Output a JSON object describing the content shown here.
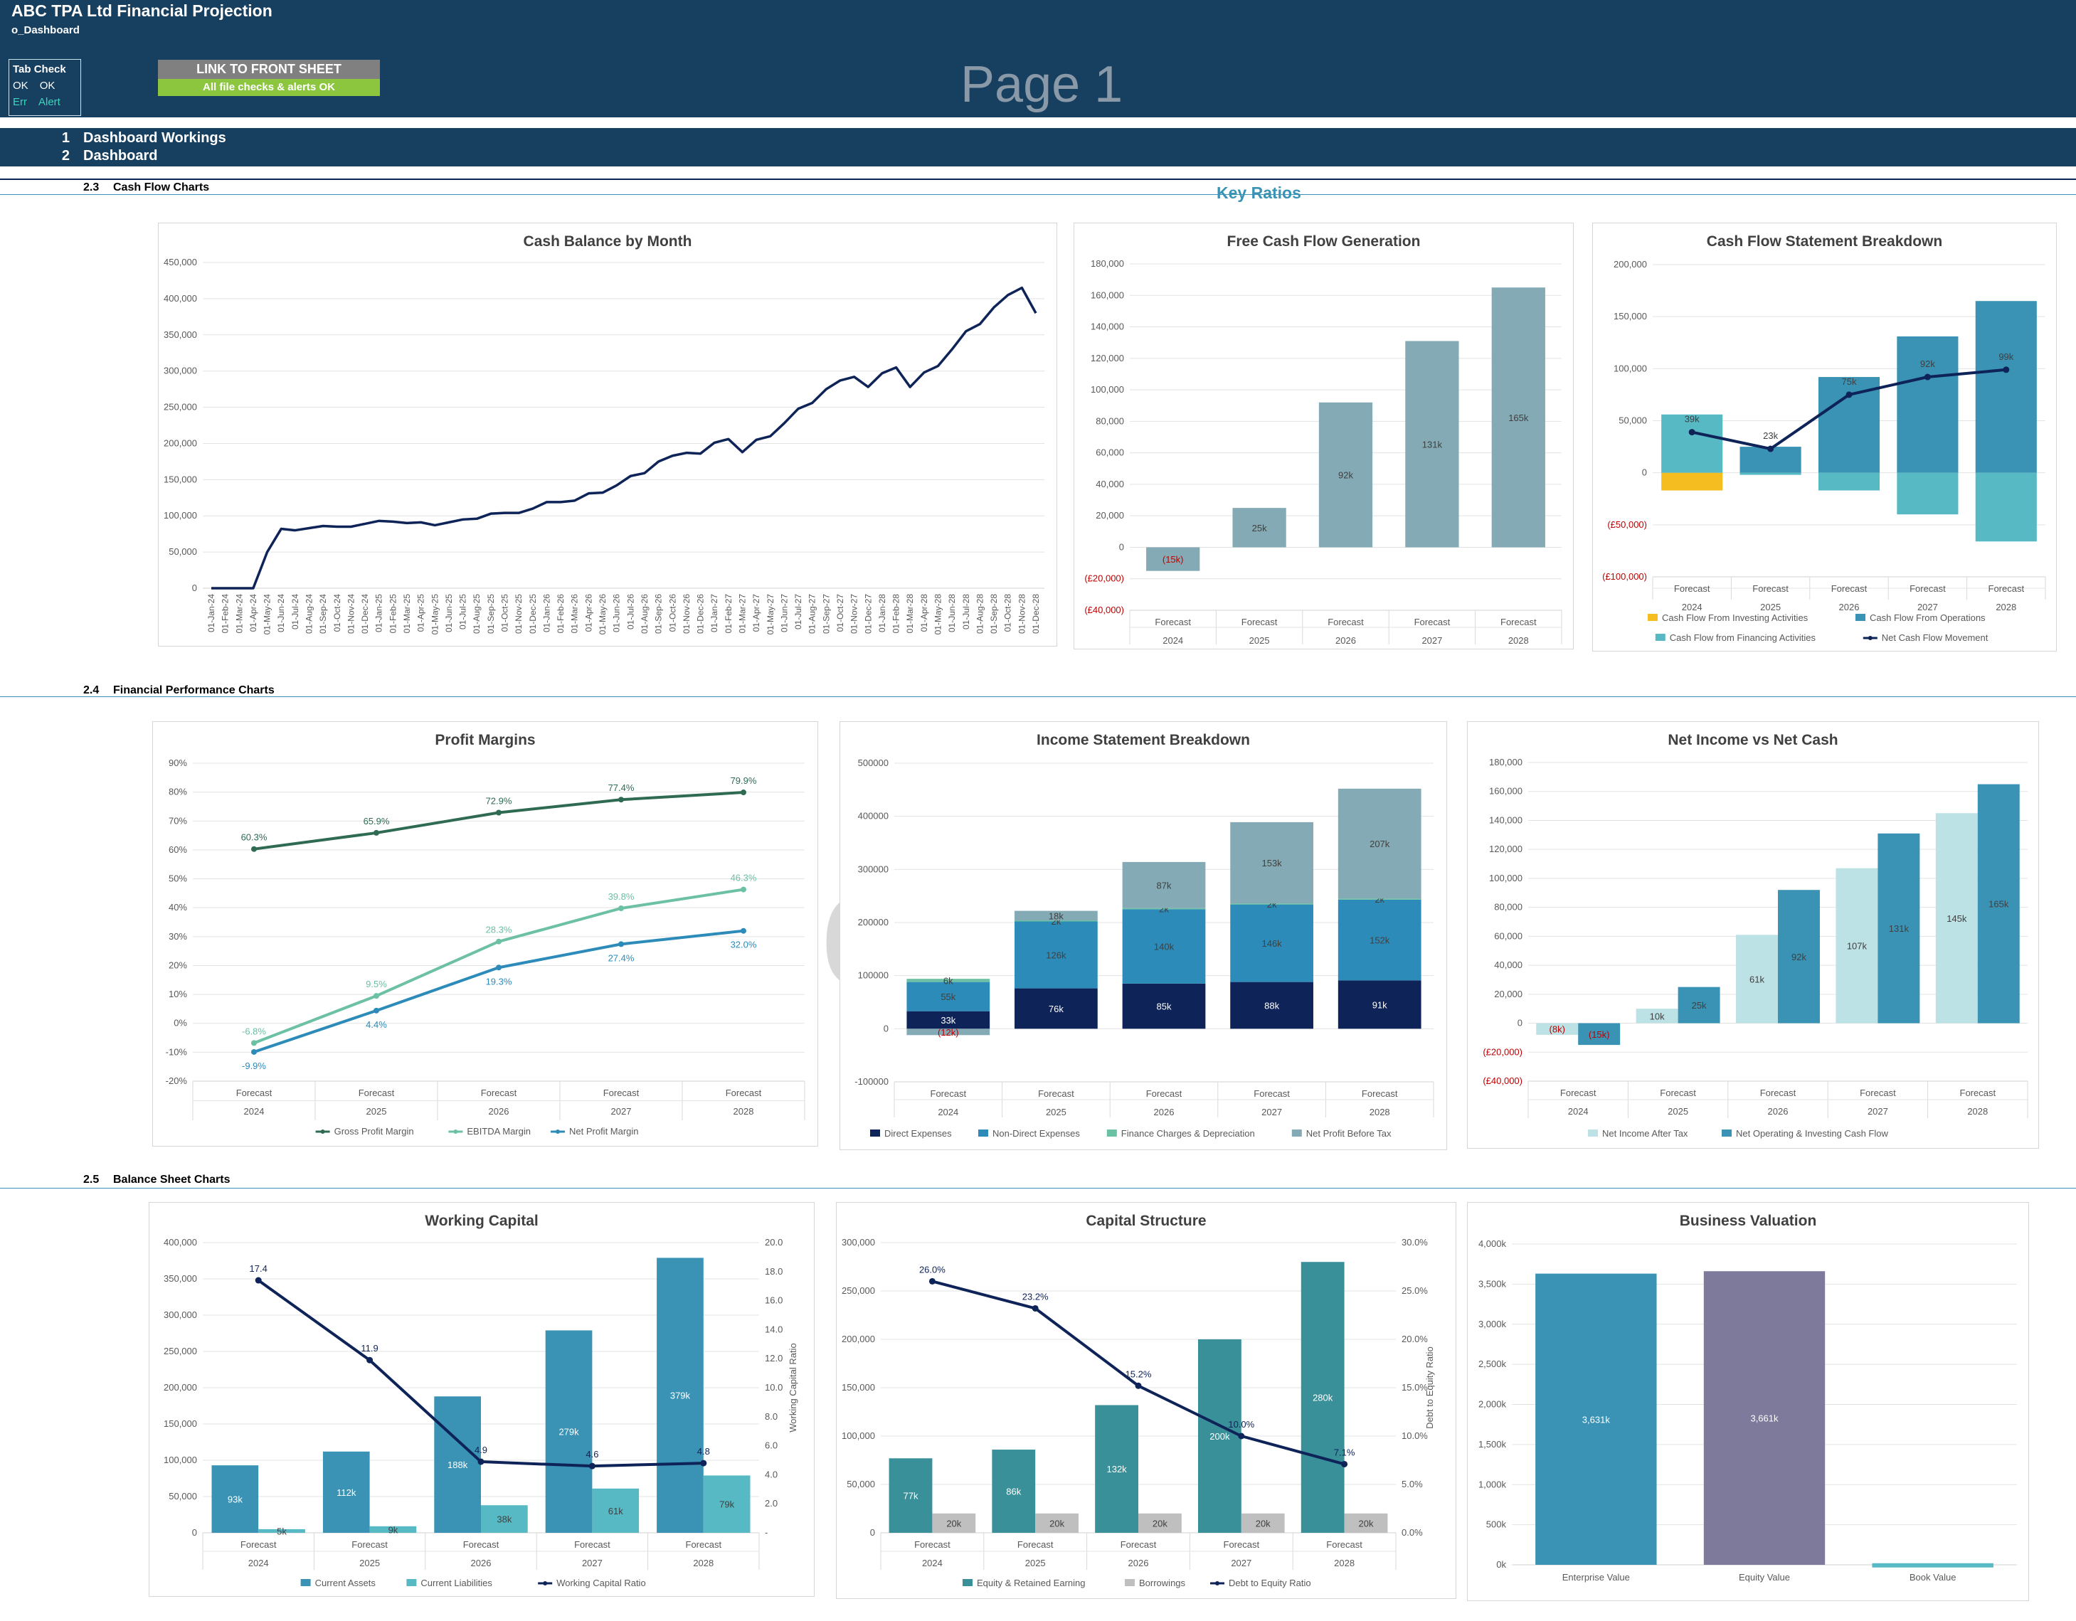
{
  "header": {
    "title": "ABC TPA Ltd Financial Projection",
    "sheet_name": "o_Dashboard",
    "page_label": "Page 1",
    "link_button": "LINK TO FRONT SHEET",
    "checks_status": "All file checks & alerts OK",
    "tab_check": {
      "title": "Tab Check",
      "ok1": "OK",
      "ok2": "OK",
      "err": "Err",
      "alert": "Alert"
    }
  },
  "nav": [
    {
      "num": "1",
      "label": "Dashboard Workings"
    },
    {
      "num": "2",
      "label": "Dashboard"
    }
  ],
  "sections": {
    "s23": {
      "num": "2.3",
      "label": "Cash Flow Charts"
    },
    "s24": {
      "num": "2.4",
      "label": "Financial Performance Charts"
    },
    "s25": {
      "num": "2.5",
      "label": "Balance Sheet Charts"
    },
    "key_ratios": "Key Ratios"
  },
  "colors": {
    "header_bg": "#173f5f",
    "check_green": "#8cc63f",
    "link_gray": "#808080",
    "accent_teal": "#3a93b4"
  },
  "chart_data": [
    {
      "id": "cash_balance",
      "type": "line",
      "title": "Cash Balance by Month",
      "ylim": [
        0,
        450000
      ],
      "yticks": [
        "0",
        "50,000",
        "100,000",
        "150,000",
        "200,000",
        "250,000",
        "300,000",
        "350,000",
        "400,000",
        "450,000"
      ],
      "categories": [
        "01-Jan-24",
        "01-Feb-24",
        "01-Mar-24",
        "01-Apr-24",
        "01-May-24",
        "01-Jun-24",
        "01-Jul-24",
        "01-Aug-24",
        "01-Sep-24",
        "01-Oct-24",
        "01-Nov-24",
        "01-Dec-24",
        "01-Jan-25",
        "01-Feb-25",
        "01-Mar-25",
        "01-Apr-25",
        "01-May-25",
        "01-Jun-25",
        "01-Jul-25",
        "01-Aug-25",
        "01-Sep-25",
        "01-Oct-25",
        "01-Nov-25",
        "01-Dec-25",
        "01-Jan-26",
        "01-Feb-26",
        "01-Mar-26",
        "01-Apr-26",
        "01-May-26",
        "01-Jun-26",
        "01-Jul-26",
        "01-Aug-26",
        "01-Sep-26",
        "01-Oct-26",
        "01-Nov-26",
        "01-Dec-26",
        "01-Jan-27",
        "01-Feb-27",
        "01-Mar-27",
        "01-Apr-27",
        "01-May-27",
        "01-Jun-27",
        "01-Jul-27",
        "01-Aug-27",
        "01-Sep-27",
        "01-Oct-27",
        "01-Nov-27",
        "01-Dec-27",
        "01-Jan-28",
        "01-Feb-28",
        "01-Mar-28",
        "01-Apr-28",
        "01-May-28",
        "01-Jun-28",
        "01-Jul-28",
        "01-Aug-28",
        "01-Sep-28",
        "01-Oct-28",
        "01-Nov-28",
        "01-Dec-28"
      ],
      "series": [
        {
          "color": "#0e2357",
          "values": [
            0,
            0,
            0,
            0,
            50000,
            82000,
            80000,
            83000,
            86000,
            85000,
            85000,
            89000,
            93000,
            92000,
            90000,
            91000,
            87000,
            91000,
            95000,
            96000,
            103000,
            104000,
            104000,
            110000,
            119000,
            119000,
            121000,
            131000,
            132000,
            142000,
            155000,
            159000,
            175000,
            183000,
            187000,
            186000,
            201000,
            206000,
            188000,
            205000,
            210000,
            228000,
            248000,
            256000,
            275000,
            287000,
            292000,
            278000,
            297000,
            305000,
            278000,
            298000,
            307000,
            330000,
            355000,
            365000,
            388000,
            405000,
            415000,
            380000
          ]
        }
      ]
    },
    {
      "id": "fcf",
      "type": "bar",
      "title": "Free Cash Flow Generation",
      "ylim": [
        -40000,
        180000
      ],
      "yticks": [
        "(£40,000)",
        "(£20,000)",
        "0",
        "20,000",
        "40,000",
        "60,000",
        "80,000",
        "100,000",
        "120,000",
        "140,000",
        "160,000",
        "180,000"
      ],
      "categories": [
        [
          "Forecast",
          "2024"
        ],
        [
          "Forecast",
          "2025"
        ],
        [
          "Forecast",
          "2026"
        ],
        [
          "Forecast",
          "2027"
        ],
        [
          "Forecast",
          "2028"
        ]
      ],
      "series": [
        {
          "color": "#84aab5",
          "values": [
            -15000,
            25000,
            92000,
            131000,
            165000
          ],
          "labels": [
            "(15k)",
            "25k",
            "92k",
            "131k",
            "165k"
          ]
        }
      ]
    },
    {
      "id": "cfs",
      "type": "bar",
      "title": "Cash Flow Statement Breakdown",
      "ylim": [
        -100000,
        200000
      ],
      "yticks": [
        "(£100,000)",
        "(£50,000)",
        "0",
        "50,000",
        "100,000",
        "150,000",
        "200,000"
      ],
      "categories": [
        [
          "Forecast",
          "2024"
        ],
        [
          "Forecast",
          "2025"
        ],
        [
          "Forecast",
          "2026"
        ],
        [
          "Forecast",
          "2027"
        ],
        [
          "Forecast",
          "2028"
        ]
      ],
      "series": [
        {
          "name": "Cash Flow From Investing Activities",
          "color": "#f5bd1f",
          "values": [
            -17000,
            0,
            0,
            0,
            0
          ]
        },
        {
          "name": "Cash Flow From Operations",
          "color": "#3a93b4",
          "values": [
            0,
            25000,
            92000,
            131000,
            165000
          ]
        },
        {
          "name": "Cash Flow from Financing Activities",
          "color": "#57b9c4",
          "values": [
            56000,
            -2000,
            -17000,
            -40000,
            -66000
          ]
        },
        {
          "name": "Net Cash Flow Movement",
          "color": "#0e2357",
          "type": "line",
          "values": [
            39000,
            23000,
            75000,
            92000,
            99000
          ],
          "labels": [
            "39k",
            "23k",
            "75k",
            "92k",
            "99k"
          ]
        }
      ]
    },
    {
      "id": "margins",
      "type": "line",
      "title": "Profit Margins",
      "ylim": [
        -20,
        90
      ],
      "yticks": [
        "-20%",
        "-10%",
        "0%",
        "10%",
        "20%",
        "30%",
        "40%",
        "50%",
        "60%",
        "70%",
        "80%",
        "90%"
      ],
      "categories": [
        [
          "Forecast",
          "2024"
        ],
        [
          "Forecast",
          "2025"
        ],
        [
          "Forecast",
          "2026"
        ],
        [
          "Forecast",
          "2027"
        ],
        [
          "Forecast",
          "2028"
        ]
      ],
      "series": [
        {
          "name": "Gross Profit Margin",
          "color": "#2e6b52",
          "values": [
            60.3,
            65.9,
            72.9,
            77.4,
            79.9
          ],
          "labels": [
            "60.3%",
            "65.9%",
            "72.9%",
            "77.4%",
            "79.9%"
          ]
        },
        {
          "name": "EBITDA Margin",
          "color": "#6cc0a3",
          "values": [
            -6.8,
            9.5,
            28.3,
            39.8,
            46.3
          ],
          "labels": [
            "-6.8%",
            "9.5%",
            "28.3%",
            "39.8%",
            "46.3%"
          ]
        },
        {
          "name": "Net Profit Margin",
          "color": "#2c8bb9",
          "values": [
            -9.9,
            4.4,
            19.3,
            27.4,
            32.0
          ],
          "labels": [
            "-9.9%",
            "4.4%",
            "19.3%",
            "27.4%",
            "32.0%"
          ]
        }
      ]
    },
    {
      "id": "income",
      "type": "bar",
      "title": "Income Statement Breakdown",
      "ylim": [
        -100000,
        500000
      ],
      "yticks": [
        "-100000",
        "0",
        "100000",
        "200000",
        "300000",
        "400000",
        "500000"
      ],
      "categories": [
        [
          "Forecast",
          "2024"
        ],
        [
          "Forecast",
          "2025"
        ],
        [
          "Forecast",
          "2026"
        ],
        [
          "Forecast",
          "2027"
        ],
        [
          "Forecast",
          "2028"
        ]
      ],
      "series": [
        {
          "name": "Direct Expenses",
          "color": "#0e2357",
          "values": [
            33000,
            76000,
            85000,
            88000,
            91000
          ],
          "labels": [
            "33k",
            "76k",
            "85k",
            "88k",
            "91k"
          ]
        },
        {
          "name": "Non-Direct Expenses",
          "color": "#2c8bb9",
          "values": [
            55000,
            126000,
            140000,
            146000,
            152000
          ],
          "labels": [
            "55k",
            "126k",
            "140k",
            "146k",
            "152k"
          ]
        },
        {
          "name": "Finance Charges & Depreciation",
          "color": "#6cc0a3",
          "values": [
            6000,
            2000,
            2000,
            2000,
            2000
          ],
          "labels": [
            "6k",
            "2k",
            "2k",
            "2k",
            "2k"
          ]
        },
        {
          "name": "Net Profit Before Tax",
          "color": "#84aab5",
          "values": [
            -12000,
            18000,
            87000,
            153000,
            207000
          ],
          "labels": [
            "(12k)",
            "18k",
            "87k",
            "153k",
            "207k"
          ]
        }
      ]
    },
    {
      "id": "netinc",
      "type": "bar",
      "title": "Net Income vs Net Cash",
      "ylim": [
        -40000,
        180000
      ],
      "yticks": [
        "(£40,000)",
        "(£20,000)",
        "0",
        "20,000",
        "40,000",
        "60,000",
        "80,000",
        "100,000",
        "120,000",
        "140,000",
        "160,000",
        "180,000"
      ],
      "categories": [
        [
          "Forecast",
          "2024"
        ],
        [
          "Forecast",
          "2025"
        ],
        [
          "Forecast",
          "2026"
        ],
        [
          "Forecast",
          "2027"
        ],
        [
          "Forecast",
          "2028"
        ]
      ],
      "series": [
        {
          "name": "Net Income After Tax",
          "color": "#bde2e6",
          "values": [
            -8000,
            10000,
            61000,
            107000,
            145000
          ],
          "labels": [
            "(8k)",
            "10k",
            "61k",
            "107k",
            "145k"
          ]
        },
        {
          "name": "Net Operating & Investing Cash Flow",
          "color": "#3a93b4",
          "values": [
            -15000,
            25000,
            92000,
            131000,
            165000
          ],
          "labels": [
            "(15k)",
            "25k",
            "92k",
            "131k",
            "165k"
          ]
        }
      ]
    },
    {
      "id": "wc",
      "type": "bar",
      "title": "Working Capital",
      "ylim": [
        0,
        400000
      ],
      "yticks": [
        "0",
        "50,000",
        "100,000",
        "150,000",
        "200,000",
        "250,000",
        "300,000",
        "350,000",
        "400,000"
      ],
      "y2lim": [
        0,
        20
      ],
      "y2ticks": [
        "-",
        "2.0",
        "4.0",
        "6.0",
        "8.0",
        "10.0",
        "12.0",
        "14.0",
        "16.0",
        "18.0",
        "20.0"
      ],
      "y2label": "Working Capital Ratio",
      "categories": [
        [
          "Forecast",
          "2024"
        ],
        [
          "Forecast",
          "2025"
        ],
        [
          "Forecast",
          "2026"
        ],
        [
          "Forecast",
          "2027"
        ],
        [
          "Forecast",
          "2028"
        ]
      ],
      "series": [
        {
          "name": "Current Assets",
          "color": "#3a93b4",
          "values": [
            93000,
            112000,
            188000,
            279000,
            379000
          ],
          "labels": [
            "93k",
            "112k",
            "188k",
            "279k",
            "379k"
          ]
        },
        {
          "name": "Current Liabilities",
          "color": "#57b9c4",
          "values": [
            5000,
            9000,
            38000,
            61000,
            79000
          ],
          "labels": [
            "5k",
            "9k",
            "38k",
            "61k",
            "79k"
          ]
        },
        {
          "name": "Working Capital Ratio",
          "color": "#0e2357",
          "type": "line",
          "axis": "y2",
          "values": [
            17.4,
            11.9,
            4.9,
            4.6,
            4.8
          ],
          "labels": [
            "17.4",
            "11.9",
            "4.9",
            "4.6",
            "4.8"
          ]
        }
      ]
    },
    {
      "id": "capstr",
      "type": "bar",
      "title": "Capital Structure",
      "ylim": [
        0,
        300000
      ],
      "yticks": [
        "0",
        "50,000",
        "100,000",
        "150,000",
        "200,000",
        "250,000",
        "300,000"
      ],
      "y2lim": [
        0,
        30
      ],
      "y2ticks": [
        "0.0%",
        "5.0%",
        "10.0%",
        "15.0%",
        "20.0%",
        "25.0%",
        "30.0%"
      ],
      "y2label": "Debt to Equity Ratio",
      "categories": [
        [
          "Forecast",
          "2024"
        ],
        [
          "Forecast",
          "2025"
        ],
        [
          "Forecast",
          "2026"
        ],
        [
          "Forecast",
          "2027"
        ],
        [
          "Forecast",
          "2028"
        ]
      ],
      "series": [
        {
          "name": "Equity & Retained Earning",
          "color": "#3a9099",
          "values": [
            77000,
            86000,
            132000,
            200000,
            280000
          ],
          "labels": [
            "77k",
            "86k",
            "132k",
            "200k",
            "280k"
          ]
        },
        {
          "name": "Borrowings",
          "color": "#bfbfbf",
          "values": [
            20000,
            20000,
            20000,
            20000,
            20000
          ],
          "labels": [
            "20k",
            "20k",
            "20k",
            "20k",
            "20k"
          ]
        },
        {
          "name": "Debt to Equity Ratio",
          "color": "#0e2357",
          "type": "line",
          "axis": "y2",
          "values": [
            26.0,
            23.2,
            15.2,
            10.0,
            7.1
          ],
          "labels": [
            "26.0%",
            "23.2%",
            "15.2%",
            "10.0%",
            "7.1%"
          ]
        }
      ]
    },
    {
      "id": "valuation",
      "type": "bar",
      "title": "Business Valuation",
      "ylim": [
        0,
        4000
      ],
      "yticks": [
        "0k",
        "500k",
        "1,000k",
        "1,500k",
        "2,000k",
        "2,500k",
        "3,000k",
        "3,500k",
        "4,000k"
      ],
      "categories": [
        "Enterprise Value",
        "Equity Value",
        "Book Value"
      ],
      "series": [
        {
          "values": [
            3631,
            3661,
            20
          ],
          "labels": [
            "3,631k",
            "3,661k",
            ""
          ],
          "colors": [
            "#3a93b4",
            "#7d7a9b",
            "#57b9c4"
          ]
        }
      ]
    }
  ]
}
